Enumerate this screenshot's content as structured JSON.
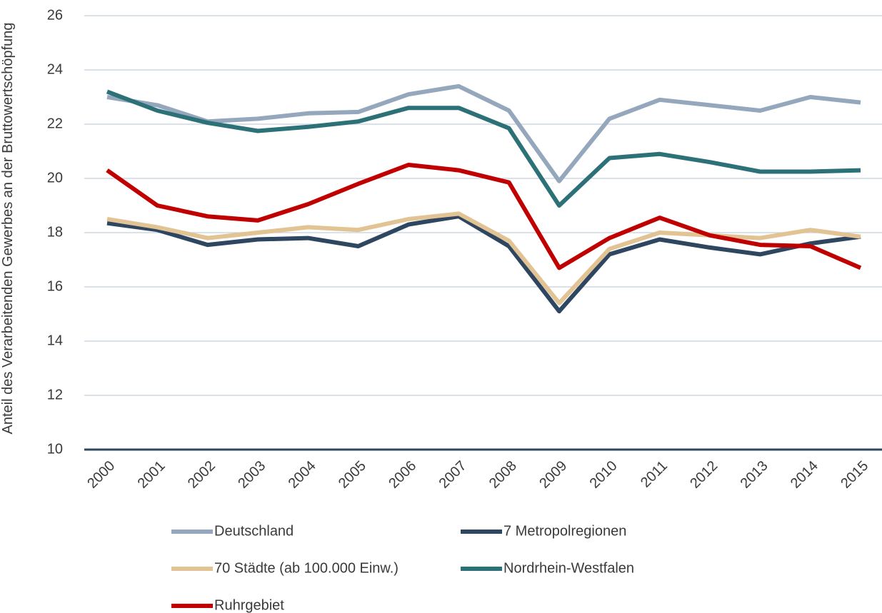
{
  "chart_data": {
    "type": "line",
    "y_label": "Anteil des Verarbeitenden Gewerbes an der Bruttowertschöpfung",
    "categories": [
      "2000",
      "2001",
      "2002",
      "2003",
      "2004",
      "2005",
      "2006",
      "2007",
      "2008",
      "2009",
      "2010",
      "2011",
      "2012",
      "2013",
      "2014",
      "2015"
    ],
    "series": [
      {
        "name": "Deutschland",
        "color": "#94a7bd",
        "values": [
          23.0,
          22.7,
          22.1,
          22.2,
          22.4,
          22.45,
          23.1,
          23.4,
          22.5,
          19.9,
          22.2,
          22.9,
          22.7,
          22.5,
          23.0,
          22.8
        ]
      },
      {
        "name": "7 Metropolregionen",
        "color": "#2e4660",
        "values": [
          18.35,
          18.1,
          17.55,
          17.75,
          17.8,
          17.5,
          18.3,
          18.6,
          17.5,
          15.1,
          17.2,
          17.75,
          17.45,
          17.2,
          17.6,
          17.85
        ]
      },
      {
        "name": "70 Städte (ab 100.000 Einw.)",
        "color": "#e2c394",
        "values": [
          18.5,
          18.2,
          17.8,
          18.0,
          18.2,
          18.1,
          18.5,
          18.7,
          17.7,
          15.4,
          17.4,
          18.0,
          17.9,
          17.8,
          18.1,
          17.85
        ]
      },
      {
        "name": "Nordrhein-Westfalen",
        "color": "#2d7178",
        "values": [
          23.2,
          22.5,
          22.05,
          21.75,
          21.9,
          22.1,
          22.6,
          22.6,
          21.85,
          19.0,
          20.75,
          20.9,
          20.6,
          20.25,
          20.25,
          20.3
        ]
      },
      {
        "name": "Ruhrgebiet",
        "color": "#c00000",
        "values": [
          20.3,
          19.0,
          18.6,
          18.45,
          19.05,
          19.8,
          20.5,
          20.3,
          19.85,
          16.7,
          17.8,
          18.55,
          17.9,
          17.55,
          17.5,
          16.7
        ]
      }
    ],
    "ylim": [
      10,
      26
    ],
    "yticks": [
      10,
      12,
      14,
      16,
      18,
      20,
      22,
      24,
      26
    ],
    "grid": true
  }
}
